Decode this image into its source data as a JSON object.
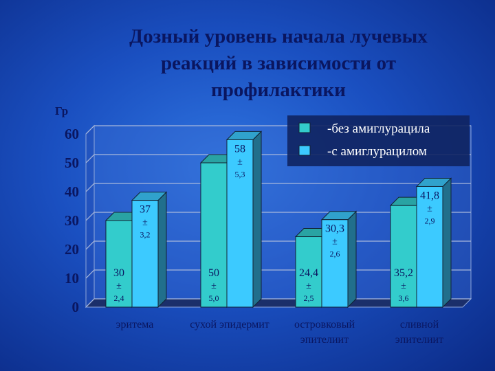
{
  "chart_data": {
    "type": "bar",
    "title": "Дозный уровень начала лучевых реакций в зависимости от профилактики",
    "y_label": "Гр",
    "categories": [
      "эритема",
      "сухой эпидермит",
      "островковый эпителиит",
      "сливной эпителиит"
    ],
    "series": [
      {
        "name": "-без амиглурацила",
        "color": "#33cccc",
        "values": [
          30,
          50,
          24.4,
          35.2
        ],
        "value_labels": [
          "30",
          "50",
          "24,4",
          "35,2"
        ],
        "errors": [
          "2,4",
          "5,0",
          "2,5",
          "3,6"
        ]
      },
      {
        "name": "-с амиглурацилом",
        "color": "#3ccaff",
        "values": [
          37,
          58,
          30.3,
          41.8
        ],
        "value_labels": [
          "37",
          "58",
          "30,3",
          "41,8"
        ],
        "errors": [
          "3,2",
          "5,3",
          "2,6",
          "2,9"
        ]
      }
    ],
    "error_sign": "±",
    "ylim": [
      0,
      60
    ],
    "yticks": [
      0,
      10,
      20,
      30,
      40,
      50,
      60
    ],
    "grid": true,
    "legend": "upper right"
  }
}
